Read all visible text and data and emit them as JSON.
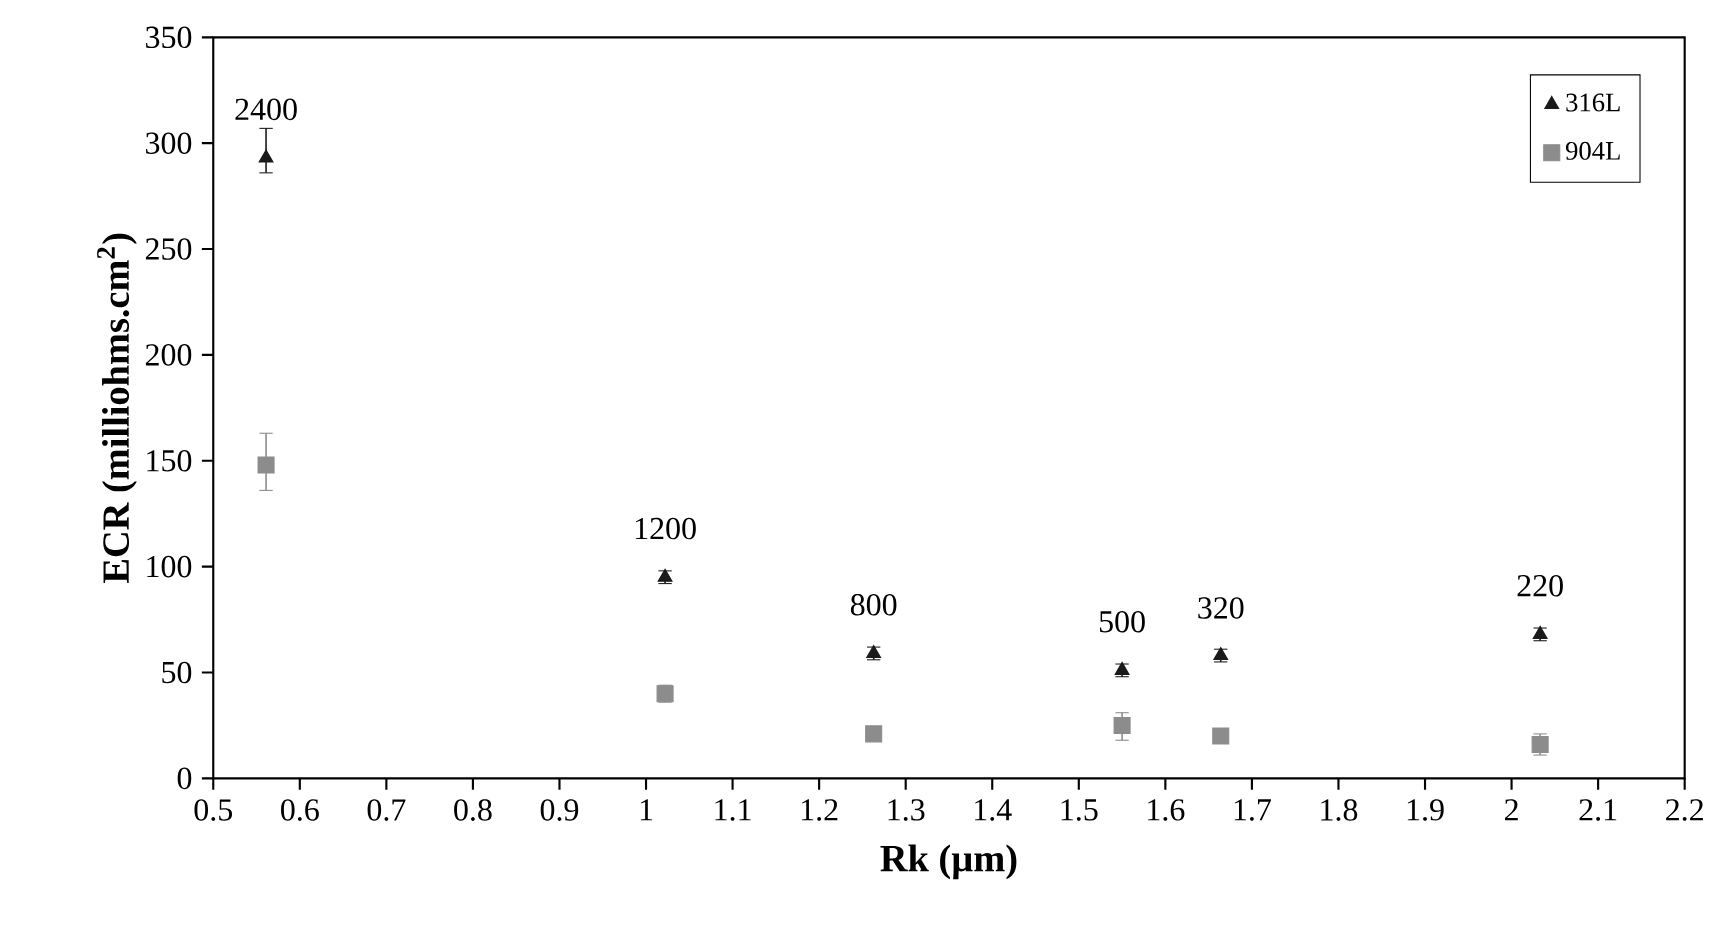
{
  "chart_data": {
    "type": "scatter",
    "xlabel": "Rk (µm)",
    "ylabel": "ECR (milliohms.cm$^{2}$)",
    "xlim": [
      0.5,
      2.2
    ],
    "xticks": [
      0.5,
      0.6,
      0.7,
      0.8,
      0.9,
      1,
      1.1,
      1.2,
      1.3,
      1.4,
      1.5,
      1.6,
      1.7,
      1.8,
      1.9,
      2,
      2.1,
      2.2
    ],
    "ylim": [
      0,
      350
    ],
    "yticks": [
      0,
      50,
      100,
      150,
      200,
      250,
      300,
      350
    ],
    "grid": false,
    "legend": "top right",
    "series": [
      {
        "name": "316L",
        "color": "#1a1a1a",
        "marker": "triangle",
        "x": [
          0.561,
          1.022,
          1.263,
          1.55,
          1.664,
          2.033
        ],
        "values": [
          293,
          95,
          59,
          51,
          58,
          68
        ],
        "errors": [
          [
            286,
            307
          ],
          3,
          3,
          3,
          3,
          3
        ]
      },
      {
        "name": "904L",
        "color": "#8c8c8c",
        "marker": "square",
        "x": [
          0.561,
          1.022,
          1.263,
          1.55,
          1.664,
          2.033
        ],
        "values": [
          148,
          40,
          21,
          25,
          20,
          16
        ],
        "errors": [
          [
            136,
            163
          ],
          4,
          2,
          [
            18,
            31
          ],
          2,
          5
        ]
      }
    ],
    "annotations": [
      {
        "text": "2400",
        "x": 0.561,
        "y": 293
      },
      {
        "text": "1200",
        "x": 1.022,
        "y": 95
      },
      {
        "text": "800",
        "x": 1.263,
        "y": 59
      },
      {
        "text": "500",
        "x": 1.55,
        "y": 51
      },
      {
        "text": "320",
        "x": 1.664,
        "y": 57.5
      },
      {
        "text": "220",
        "x": 2.033,
        "y": 68
      }
    ]
  }
}
